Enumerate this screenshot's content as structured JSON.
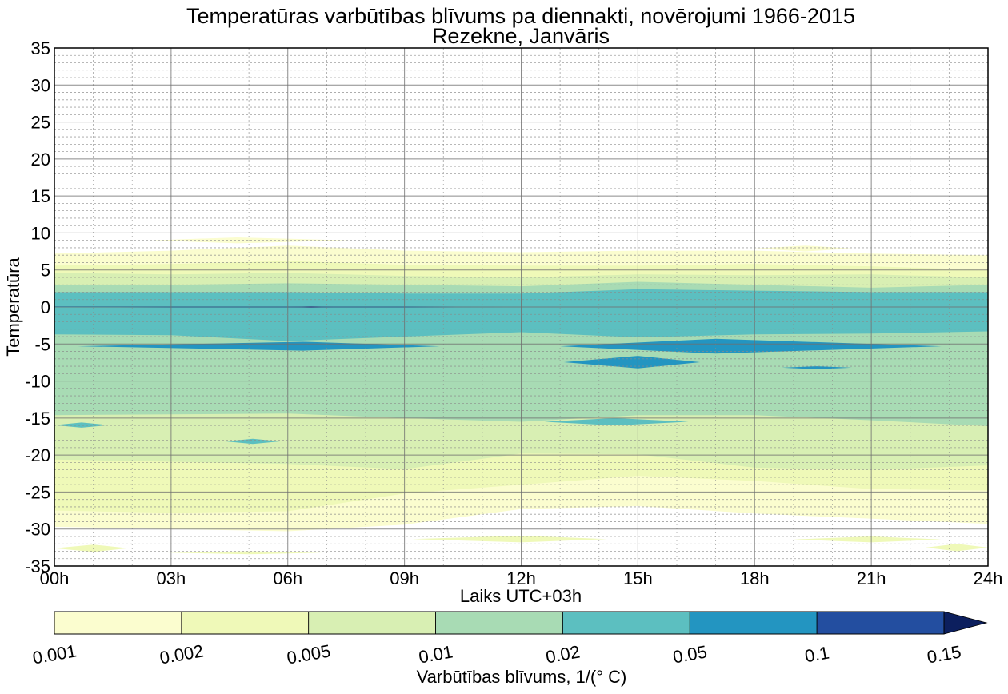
{
  "chart_data": {
    "type": "contourf",
    "title": "Temperatūras varbūtības blīvums pa diennakti, novērojumi 1966-2015",
    "subtitle": "Rezekne, Janvāris",
    "xlabel": "Laiks UTC+03h",
    "ylabel": "Temperatūra",
    "xlim": [
      0,
      24
    ],
    "ylim": [
      -35,
      35
    ],
    "grid": true,
    "x_ticks": [
      0,
      3,
      6,
      9,
      12,
      15,
      18,
      21,
      24
    ],
    "x_tick_labels": [
      "00h",
      "03h",
      "06h",
      "09h",
      "12h",
      "15h",
      "18h",
      "21h",
      "24h"
    ],
    "y_ticks": [
      35,
      30,
      25,
      20,
      15,
      10,
      5,
      0,
      -5,
      -10,
      -15,
      -20,
      -25,
      -30,
      -35
    ],
    "y_tick_labels": [
      "35",
      "30",
      "25",
      "20",
      "15",
      "10",
      "5",
      "0",
      "-5",
      "-10",
      "-15",
      "-20",
      "-25",
      "-30",
      "-35"
    ],
    "colorbar": {
      "label": "Varbūtības blīvums, 1/(° C)",
      "levels": [
        0.001,
        0.002,
        0.005,
        0.01,
        0.02,
        0.05,
        0.1,
        0.15
      ],
      "level_labels": [
        "0.001",
        "0.002",
        "0.005",
        "0.01",
        "0.02",
        "0.05",
        "0.1",
        "0.15"
      ],
      "colors": [
        "#fbfdcf",
        "#eff9b8",
        "#d8efb3",
        "#a8dbb4",
        "#5cbfc0",
        "#2395c1",
        "#234ea0",
        "#0c1f5e"
      ],
      "extend": "max"
    },
    "hours": [
      0,
      3,
      6,
      9,
      12,
      15,
      18,
      21,
      24
    ],
    "bands": [
      {
        "level": "0.001-0.002",
        "upper": [
          7.2,
          7.6,
          8.3,
          7.6,
          7.4,
          7.6,
          7.6,
          7.2,
          7.0
        ],
        "lower": [
          -29.7,
          -30.0,
          -30.3,
          -29.4,
          -27.3,
          -26.9,
          -27.9,
          -28.6,
          -29.3
        ]
      },
      {
        "level": "0.002-0.005",
        "upper": [
          5.6,
          5.8,
          6.2,
          5.7,
          5.6,
          5.6,
          5.8,
          5.5,
          5.0
        ],
        "lower": [
          -27.5,
          -27.8,
          -27.6,
          -25.2,
          -24.0,
          -22.8,
          -23.5,
          -24.6,
          -24.8
        ]
      },
      {
        "level": "0.005-0.01",
        "upper": [
          4.6,
          4.4,
          4.6,
          4.2,
          4.0,
          4.4,
          4.3,
          4.4,
          4.0
        ],
        "lower": [
          -20.6,
          -20.9,
          -21.2,
          -21.9,
          -19.8,
          -19.9,
          -21.7,
          -22.0,
          -21.4
        ]
      },
      {
        "level": "0.01-0.02",
        "upper": [
          3.0,
          3.0,
          3.2,
          3.0,
          2.8,
          3.4,
          3.0,
          2.6,
          3.0
        ],
        "lower": [
          -14.6,
          -14.5,
          -14.4,
          -15.0,
          -15.5,
          -14.6,
          -14.6,
          -15.3,
          -16.1
        ]
      },
      {
        "level": "0.02-0.05",
        "upper": [
          2.0,
          2.0,
          2.0,
          1.8,
          1.8,
          2.4,
          2.2,
          2.0,
          2.0
        ],
        "lower": [
          -3.7,
          -3.8,
          -4.6,
          -4.0,
          -3.4,
          -4.1,
          -3.7,
          -3.6,
          -3.3
        ]
      },
      {
        "level": "0.05-0.1",
        "upper": [
          0.1,
          0.1,
          0.1,
          0.1,
          0.0,
          0.0,
          0.0,
          0.0,
          0.0
        ],
        "lower": [
          0.0,
          -0.1,
          -0.1,
          -0.1,
          0.0,
          0.0,
          0.0,
          0.0,
          0.0
        ]
      }
    ],
    "islands": [
      {
        "level": "0.05-0.1",
        "hours": [
          0.6,
          6.4,
          9.9
        ],
        "upper": -4.7,
        "lower": -5.9
      },
      {
        "level": "0.05-0.1",
        "hours": [
          13.0,
          17.0,
          22.8
        ],
        "upper": -4.3,
        "lower": -6.3
      },
      {
        "level": "0.05-0.1",
        "hours": [
          13.1,
          15.0,
          16.6
        ],
        "upper": -6.6,
        "lower": -8.3
      },
      {
        "level": "0.05-0.1",
        "hours": [
          18.7,
          19.6,
          20.5
        ],
        "upper": -8.0,
        "lower": -8.4
      },
      {
        "level": "0.1-0.15",
        "hours": [
          6.0,
          6.6,
          7.2
        ],
        "upper": 0.1,
        "lower": -0.1
      },
      {
        "level": "0.001-0.002",
        "hours": [
          2.5,
          4.7,
          7.6
        ],
        "upper": 9.4,
        "lower": 8.6
      },
      {
        "level": "0.001-0.002",
        "hours": [
          18.0,
          19.3,
          20.5
        ],
        "upper": 8.3,
        "lower": 7.5
      },
      {
        "level": "0.002-0.005",
        "hours": [
          0.0,
          1.0,
          1.9
        ],
        "upper": -32.1,
        "lower": -33.1
      },
      {
        "level": "0.002-0.005",
        "hours": [
          2.9,
          5.0,
          6.9
        ],
        "upper": -33.0,
        "lower": -33.4
      },
      {
        "level": "0.002-0.005",
        "hours": [
          9.2,
          12.0,
          14.2
        ],
        "upper": -30.9,
        "lower": -31.8
      },
      {
        "level": "0.002-0.005",
        "hours": [
          19.0,
          21.0,
          22.8
        ],
        "upper": -31.0,
        "lower": -31.8
      },
      {
        "level": "0.002-0.005",
        "hours": [
          22.4,
          23.2,
          24.0
        ],
        "upper": -32.0,
        "lower": -33.0
      },
      {
        "level": "0.02-0.05",
        "hours": [
          0.0,
          0.7,
          1.4
        ],
        "upper": -15.6,
        "lower": -16.3
      },
      {
        "level": "0.02-0.05",
        "hours": [
          4.4,
          5.1,
          5.8
        ],
        "upper": -17.8,
        "lower": -18.5
      },
      {
        "level": "0.02-0.05",
        "hours": [
          12.6,
          14.4,
          16.3
        ],
        "upper": -15.0,
        "lower": -16.0
      }
    ]
  }
}
